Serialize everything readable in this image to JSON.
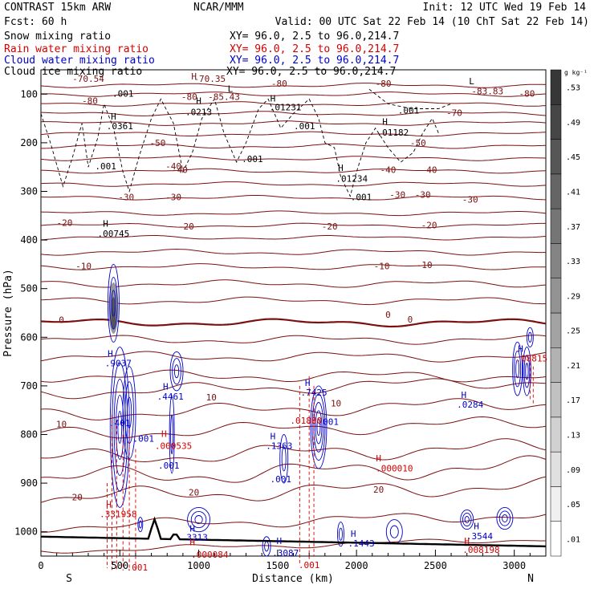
{
  "header": {
    "left": [
      {
        "text": "CONTRAST 15km ARW",
        "color": "#000000"
      },
      {
        "text": "Fcst:    60 h",
        "color": "#000000"
      },
      {
        "text": "Snow mixing ratio",
        "color": "#000000"
      },
      {
        "text": "Rain water mixing ratio",
        "color": "#d40000"
      },
      {
        "text": "Cloud water mixing ratio",
        "color": "#0000cc"
      },
      {
        "text": "Cloud ice mixing ratio",
        "color": "#000000"
      }
    ],
    "center": "NCAR/MMM",
    "init": "Init: 12 UTC Wed 19 Feb 14",
    "valid": "Valid: 00 UTC Sat 22 Feb 14 (10 ChT Sat 22 Feb 14)",
    "xy": [
      {
        "text": "XY=  96.0,  2.5 to  96.0,214.7",
        "color": "#000000"
      },
      {
        "text": "XY=  96.0,  2.5 to  96.0,214.7",
        "color": "#d40000"
      },
      {
        "text": "XY=  96.0,  2.5 to  96.0,214.7",
        "color": "#0000cc"
      },
      {
        "text": "XY=  96.0,  2.5 to  96.0,214.7",
        "color": "#000000"
      }
    ]
  },
  "chart_data": {
    "type": "contour",
    "xlabel": "Distance (km)",
    "ylabel": "Pressure (hPa)",
    "xlim": [
      0,
      3200
    ],
    "ylim": [
      1050,
      50
    ],
    "x_ticks": [
      0,
      500,
      1000,
      1500,
      2000,
      2500,
      3000
    ],
    "y_ticks": [
      100,
      200,
      300,
      400,
      500,
      600,
      700,
      800,
      900,
      1000
    ],
    "end_labels": {
      "left": "S",
      "right": "N"
    },
    "colorbar": {
      "unit": "g kg⁻¹",
      "levels": [
        ".01",
        ".05",
        ".09",
        ".13",
        ".17",
        ".21",
        ".25",
        ".29",
        ".33",
        ".37",
        ".41",
        ".45",
        ".49",
        ".53"
      ]
    },
    "temperature_contours": {
      "color": "#7a1010",
      "levels_degC": [
        -80,
        -70,
        -50,
        -40,
        -30,
        -20,
        -10,
        0,
        10,
        20
      ],
      "freezing_level_hPa": 570
    },
    "annotations": [
      {
        "x": 300,
        "p": 75,
        "text": "-70.54",
        "color": "#7a1010"
      },
      {
        "x": 1070,
        "p": 75,
        "text": "-70.35",
        "color": "#7a1010"
      },
      {
        "x": 970,
        "p": 70,
        "text": "H",
        "color": "#7a1010"
      },
      {
        "x": 310,
        "p": 120,
        "text": "-80",
        "color": "#7a1010"
      },
      {
        "x": 520,
        "p": 105,
        "text": ".001",
        "color": "#000000"
      },
      {
        "x": 940,
        "p": 112,
        "text": "-80",
        "color": "#7a1010"
      },
      {
        "x": 1160,
        "p": 112,
        "text": "-85.43",
        "color": "#7a1010"
      },
      {
        "x": 1200,
        "p": 95,
        "text": "L",
        "color": "#000000"
      },
      {
        "x": 1510,
        "p": 85,
        "text": "-80",
        "color": "#7a1010"
      },
      {
        "x": 1470,
        "p": 115,
        "text": "H",
        "color": "#000000"
      },
      {
        "x": 1550,
        "p": 133,
        "text": ".01231",
        "color": "#000000"
      },
      {
        "x": 2170,
        "p": 85,
        "text": "-80",
        "color": "#7a1010"
      },
      {
        "x": 2730,
        "p": 80,
        "text": "L",
        "color": "#000000"
      },
      {
        "x": 2830,
        "p": 100,
        "text": "-83.83",
        "color": "#7a1010"
      },
      {
        "x": 3080,
        "p": 105,
        "text": "-80",
        "color": "#7a1010"
      },
      {
        "x": 1000,
        "p": 120,
        "text": "H",
        "color": "#000000"
      },
      {
        "x": 1000,
        "p": 143,
        "text": ".0213",
        "color": "#000000"
      },
      {
        "x": 2330,
        "p": 140,
        "text": ".001",
        "color": "#000000"
      },
      {
        "x": 2620,
        "p": 145,
        "text": "-70",
        "color": "#7a1010"
      },
      {
        "x": 460,
        "p": 152,
        "text": "H",
        "color": "#000000"
      },
      {
        "x": 500,
        "p": 172,
        "text": ".0361",
        "color": "#000000"
      },
      {
        "x": 1670,
        "p": 172,
        "text": ".001",
        "color": "#000000"
      },
      {
        "x": 2180,
        "p": 163,
        "text": "H",
        "color": "#000000"
      },
      {
        "x": 2230,
        "p": 185,
        "text": ".01182",
        "color": "#000000"
      },
      {
        "x": 2390,
        "p": 207,
        "text": "-50",
        "color": "#7a1010"
      },
      {
        "x": 740,
        "p": 207,
        "text": "-50",
        "color": "#7a1010"
      },
      {
        "x": 410,
        "p": 255,
        "text": ".001",
        "color": "#000000"
      },
      {
        "x": 1340,
        "p": 240,
        "text": ".001",
        "color": "#000000"
      },
      {
        "x": 840,
        "p": 255,
        "text": "-40",
        "color": "#7a1010"
      },
      {
        "x": 880,
        "p": 262,
        "text": "-40",
        "color": "#7a1010"
      },
      {
        "x": 1900,
        "p": 258,
        "text": "H",
        "color": "#000000"
      },
      {
        "x": 1970,
        "p": 280,
        "text": ".01234",
        "color": "#000000"
      },
      {
        "x": 2200,
        "p": 262,
        "text": "-40",
        "color": "#7a1010"
      },
      {
        "x": 2460,
        "p": 262,
        "text": "-40",
        "color": "#7a1010"
      },
      {
        "x": 540,
        "p": 318,
        "text": "-30",
        "color": "#7a1010"
      },
      {
        "x": 840,
        "p": 318,
        "text": "-30",
        "color": "#7a1010"
      },
      {
        "x": 2030,
        "p": 318,
        "text": ".001",
        "color": "#000000"
      },
      {
        "x": 2260,
        "p": 313,
        "text": "-30",
        "color": "#7a1010"
      },
      {
        "x": 2420,
        "p": 313,
        "text": "-30",
        "color": "#7a1010"
      },
      {
        "x": 2720,
        "p": 323,
        "text": "-30",
        "color": "#7a1010"
      },
      {
        "x": 150,
        "p": 371,
        "text": "-20",
        "color": "#7a1010"
      },
      {
        "x": 410,
        "p": 373,
        "text": "H",
        "color": "#000000"
      },
      {
        "x": 460,
        "p": 393,
        "text": ".00745",
        "color": "#000000"
      },
      {
        "x": 920,
        "p": 378,
        "text": "-20",
        "color": "#7a1010"
      },
      {
        "x": 1830,
        "p": 378,
        "text": "-20",
        "color": "#7a1010"
      },
      {
        "x": 2460,
        "p": 376,
        "text": "-20",
        "color": "#7a1010"
      },
      {
        "x": 270,
        "p": 460,
        "text": "-10",
        "color": "#7a1010"
      },
      {
        "x": 2160,
        "p": 460,
        "text": "-10",
        "color": "#7a1010"
      },
      {
        "x": 2430,
        "p": 458,
        "text": "-10",
        "color": "#7a1010"
      },
      {
        "x": 130,
        "p": 571,
        "text": "0",
        "color": "#7a1010"
      },
      {
        "x": 2200,
        "p": 560,
        "text": "0",
        "color": "#7a1010"
      },
      {
        "x": 2340,
        "p": 570,
        "text": "0",
        "color": "#7a1010"
      },
      {
        "x": 440,
        "p": 640,
        "text": "H",
        "color": "#0000cc"
      },
      {
        "x": 490,
        "p": 660,
        "text": ".9037",
        "color": "#0000cc"
      },
      {
        "x": 790,
        "p": 708,
        "text": "H",
        "color": "#0000cc"
      },
      {
        "x": 820,
        "p": 728,
        "text": ".4461",
        "color": "#0000cc"
      },
      {
        "x": 1080,
        "p": 730,
        "text": "10",
        "color": "#7a1010"
      },
      {
        "x": 130,
        "p": 785,
        "text": "10",
        "color": "#7a1010"
      },
      {
        "x": 500,
        "p": 783,
        "text": ".401",
        "color": "#0000cc"
      },
      {
        "x": 650,
        "p": 815,
        "text": ".001",
        "color": "#0000cc"
      },
      {
        "x": 780,
        "p": 805,
        "text": "H",
        "color": "#d40000"
      },
      {
        "x": 840,
        "p": 830,
        "text": ".000535",
        "color": "#d40000"
      },
      {
        "x": 810,
        "p": 870,
        "text": ".001",
        "color": "#0000cc"
      },
      {
        "x": 1690,
        "p": 700,
        "text": "H",
        "color": "#0000cc"
      },
      {
        "x": 1730,
        "p": 720,
        "text": ".7425",
        "color": "#0000cc"
      },
      {
        "x": 1870,
        "p": 742,
        "text": "10",
        "color": "#7a1010"
      },
      {
        "x": 1680,
        "p": 778,
        "text": ".01880",
        "color": "#d40000"
      },
      {
        "x": 1820,
        "p": 780,
        "text": ".001",
        "color": "#0000cc"
      },
      {
        "x": 1470,
        "p": 810,
        "text": "H",
        "color": "#0000cc"
      },
      {
        "x": 1510,
        "p": 830,
        "text": ".1363",
        "color": "#0000cc"
      },
      {
        "x": 1520,
        "p": 898,
        "text": ".001",
        "color": "#0000cc"
      },
      {
        "x": 2140,
        "p": 855,
        "text": "H",
        "color": "#d40000"
      },
      {
        "x": 2240,
        "p": 876,
        "text": ".000010",
        "color": "#d40000"
      },
      {
        "x": 2680,
        "p": 725,
        "text": "H",
        "color": "#0000cc"
      },
      {
        "x": 2720,
        "p": 745,
        "text": ".0284",
        "color": "#0000cc"
      },
      {
        "x": 3040,
        "p": 630,
        "text": "H",
        "color": "#0000cc"
      },
      {
        "x": 3110,
        "p": 650,
        "text": ".08815",
        "color": "#d40000"
      },
      {
        "x": 230,
        "p": 935,
        "text": "20",
        "color": "#7a1010"
      },
      {
        "x": 970,
        "p": 925,
        "text": "20",
        "color": "#7a1010"
      },
      {
        "x": 2140,
        "p": 920,
        "text": "20",
        "color": "#7a1010"
      },
      {
        "x": 430,
        "p": 950,
        "text": "H",
        "color": "#d40000"
      },
      {
        "x": 490,
        "p": 970,
        "text": ".331958",
        "color": "#d40000"
      },
      {
        "x": 960,
        "p": 1000,
        "text": "H",
        "color": "#0000cc"
      },
      {
        "x": 990,
        "p": 1018,
        "text": "3313",
        "color": "#0000cc"
      },
      {
        "x": 960,
        "p": 1028,
        "text": "H",
        "color": "#d40000"
      },
      {
        "x": 1070,
        "p": 1053,
        "text": ".000084",
        "color": "#d40000"
      },
      {
        "x": 1510,
        "p": 1025,
        "text": "H",
        "color": "#0000cc"
      },
      {
        "x": 1550,
        "p": 1050,
        "text": ".3087",
        "color": "#0000cc"
      },
      {
        "x": 1980,
        "p": 1010,
        "text": "H",
        "color": "#0000cc"
      },
      {
        "x": 2030,
        "p": 1030,
        "text": ".1443",
        "color": "#0000cc"
      },
      {
        "x": 2760,
        "p": 995,
        "text": "H",
        "color": "#0000cc"
      },
      {
        "x": 2780,
        "p": 1015,
        "text": ".3544",
        "color": "#0000cc"
      },
      {
        "x": 2700,
        "p": 1025,
        "text": "H",
        "color": "#d40000"
      },
      {
        "x": 2790,
        "p": 1043,
        "text": ".008198",
        "color": "#d40000"
      },
      {
        "x": 610,
        "p": 1080,
        "text": ".001",
        "color": "#d40000"
      },
      {
        "x": 1700,
        "p": 1075,
        "text": ".001",
        "color": "#d40000"
      }
    ]
  }
}
